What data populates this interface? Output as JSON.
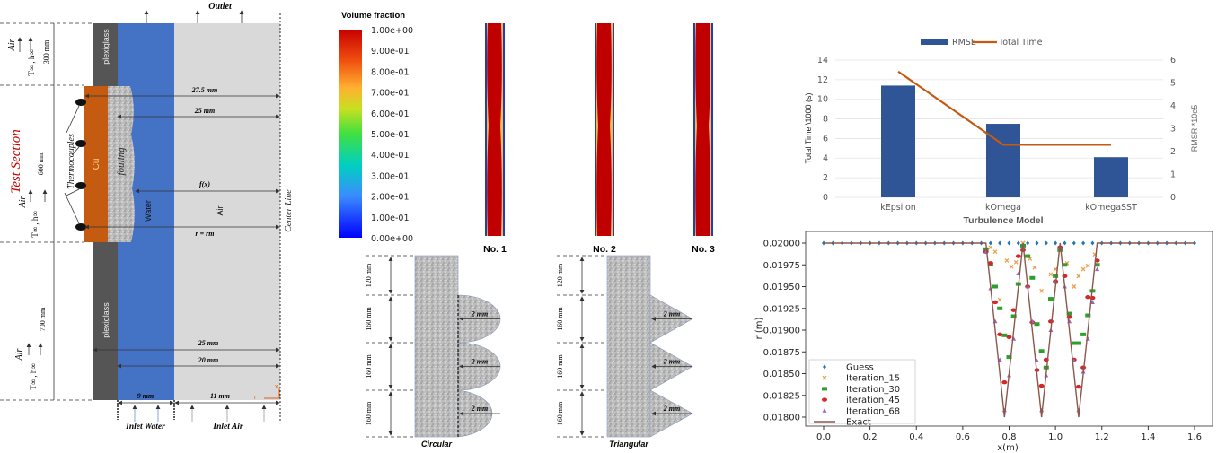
{
  "setup_diagram": {
    "outlet": "Outlet",
    "test_section": "Test Section",
    "air": "Air",
    "ambient": "T∞ , h∞",
    "len_top": "300 mm",
    "len_mid": "600 mm",
    "len_bottom": "700 mm",
    "plexiglass": "plexiglass",
    "thermocouples": "Thermocouples",
    "cu": "Cu",
    "fouling": "fouling",
    "water": "Water",
    "air_core": "Air",
    "center_line": "Center Line",
    "dim_275": "27.5 mm",
    "dim_25a": "25 mm",
    "dim_fx": "f(x)",
    "dim_rm": "r = rm",
    "dim_25b": "25 mm",
    "dim_20": "20 mm",
    "dim_9": "9 mm",
    "dim_11": "11 mm",
    "axis_x": "x",
    "axis_r": "r",
    "inlet_water": "Inlet Water",
    "inlet_air": "Inlet Air",
    "colors": {
      "plexiglass": "#555555",
      "cu": "#c55a11",
      "water": "#4472c4",
      "air": "#d9d9d9",
      "fouling": "#bdbdbd",
      "test_section": "#c00000"
    }
  },
  "volume_fraction": {
    "title": "Volume fraction",
    "ticks": [
      "1.00e+00",
      "9.00e-01",
      "8.00e-01",
      "7.00e-01",
      "6.00e-01",
      "5.00e-01",
      "4.00e-01",
      "3.00e-01",
      "2.00e-01",
      "1.00e-01",
      "0.00e+00"
    ],
    "cases": [
      "No. 1",
      "No. 2",
      "No. 3"
    ]
  },
  "fouling_shapes": {
    "circular": {
      "label": "Circular",
      "heights": [
        "120 mm",
        "160 mm",
        "160 mm",
        "160 mm"
      ],
      "radius": [
        "2 mm",
        "2 mm",
        "2 mm"
      ]
    },
    "triangular": {
      "label": "Triangular",
      "heights": [
        "120 mm",
        "160 mm",
        "160 mm",
        "160 mm"
      ],
      "radius": [
        "2 mm",
        "2 mm",
        "2 mm"
      ]
    }
  },
  "chart_data": [
    {
      "type": "bar",
      "title": "",
      "categories": [
        "kEpsilon",
        "kOmega",
        "kOmegaSST"
      ],
      "xlabel": "Turbulence Model",
      "ylabel": "Total Time \\1000 (s)",
      "ylabel_right": "RMSR *10e5",
      "ylim": [
        0,
        14
      ],
      "ylim_right": [
        0,
        6
      ],
      "yticks": [
        "0",
        "2",
        "4",
        "6",
        "8",
        "10",
        "12",
        "14"
      ],
      "yticks_right": [
        "0",
        "1",
        "2",
        "3",
        "4",
        "5",
        "6"
      ],
      "grid": true,
      "legend": "top",
      "series": [
        {
          "name": "RMSE",
          "kind": "bar",
          "axis": "left",
          "color": "#2f5597",
          "values": [
            11.4,
            7.5,
            4.1
          ]
        },
        {
          "name": "Total Time",
          "kind": "line",
          "axis": "right",
          "color": "#c55a11",
          "values": [
            5.5,
            2.3,
            2.3
          ]
        }
      ]
    },
    {
      "type": "scatter",
      "title": "",
      "xlabel": "x(m)",
      "ylabel": "r (m)",
      "xlim": [
        0,
        1.6
      ],
      "ylim": [
        0.018,
        0.02
      ],
      "xticks": [
        "0.0",
        "0.2",
        "0.4",
        "0.6",
        "0.8",
        "1.0",
        "1.2",
        "1.4",
        "1.6"
      ],
      "yticks": [
        "0.01800",
        "0.01825",
        "0.01850",
        "0.01875",
        "0.01900",
        "0.01925",
        "0.01950",
        "0.01975",
        "0.02000"
      ],
      "legend": "bottom-left",
      "series": [
        {
          "name": "Guess",
          "marker": "diamond",
          "color": "#1f77b4",
          "x": [
            0,
            0.04,
            0.08,
            0.12,
            0.16,
            0.2,
            0.24,
            0.28,
            0.32,
            0.36,
            0.4,
            0.44,
            0.48,
            0.52,
            0.56,
            0.6,
            0.64,
            0.68,
            0.72,
            0.76,
            0.8,
            0.84,
            0.88,
            0.92,
            0.96,
            1.0,
            1.04,
            1.08,
            1.12,
            1.16,
            1.2,
            1.24,
            1.28,
            1.32,
            1.36,
            1.4,
            1.44,
            1.48,
            1.52,
            1.56,
            1.6
          ],
          "y": [
            0.02,
            0.02,
            0.02,
            0.02,
            0.02,
            0.02,
            0.02,
            0.02,
            0.02,
            0.02,
            0.02,
            0.02,
            0.02,
            0.02,
            0.02,
            0.02,
            0.02,
            0.02,
            0.02,
            0.02,
            0.02,
            0.02,
            0.02,
            0.02,
            0.02,
            0.02,
            0.02,
            0.02,
            0.02,
            0.02,
            0.02,
            0.02,
            0.02,
            0.02,
            0.02,
            0.02,
            0.02,
            0.02,
            0.02,
            0.02,
            0.02
          ]
        },
        {
          "name": "Iteration_15",
          "marker": "x",
          "color": "#e8a050",
          "x": [
            0.72,
            0.74,
            0.76,
            0.79,
            0.81,
            0.83,
            0.86,
            0.89,
            0.91,
            0.94,
            0.98,
            1.0,
            1.05,
            1.08,
            1.1,
            1.12,
            1.14,
            1.17
          ],
          "y": [
            0.01995,
            0.0199,
            0.01935,
            0.0198,
            0.01973,
            0.01978,
            0.02,
            0.01982,
            0.01972,
            0.01945,
            0.01964,
            0.0197,
            0.01977,
            0.0195,
            0.01962,
            0.0197,
            0.01974,
            0.01987
          ]
        },
        {
          "name": "Iteration_30",
          "marker": "square",
          "color": "#2ca02c",
          "x": [
            0.7,
            0.72,
            0.74,
            0.76,
            0.78,
            0.8,
            0.82,
            0.84,
            0.86,
            0.88,
            0.9,
            0.92,
            0.94,
            0.96,
            0.98,
            1.0,
            1.02,
            1.04,
            1.06,
            1.08,
            1.1,
            1.12,
            1.14,
            1.16,
            1.18
          ],
          "y": [
            0.01993,
            0.01976,
            0.0195,
            0.01925,
            0.01894,
            0.01869,
            0.01916,
            0.01953,
            0.01997,
            0.01985,
            0.0196,
            0.01907,
            0.01876,
            0.01857,
            0.01936,
            0.01962,
            0.01992,
            0.01975,
            0.01919,
            0.01885,
            0.01885,
            0.01895,
            0.01917,
            0.01945,
            0.01975
          ]
        },
        {
          "name": "iteration_45",
          "marker": "circle",
          "color": "#d62728",
          "x": [
            0.7,
            0.72,
            0.74,
            0.76,
            0.78,
            0.8,
            0.82,
            0.84,
            0.86,
            0.88,
            0.9,
            0.92,
            0.94,
            0.96,
            0.98,
            1.0,
            1.02,
            1.04,
            1.06,
            1.08,
            1.1,
            1.12,
            1.14,
            1.16,
            1.18
          ],
          "y": [
            0.0199,
            0.01977,
            0.01932,
            0.01895,
            0.0184,
            0.01892,
            0.01923,
            0.01985,
            0.01992,
            0.0195,
            0.01909,
            0.01854,
            0.01836,
            0.01866,
            0.0191,
            0.01956,
            0.01995,
            0.01962,
            0.01915,
            0.01866,
            0.01835,
            0.01857,
            0.01938,
            0.01937,
            0.0198
          ]
        },
        {
          "name": "Iteration_68",
          "marker": "triangle",
          "color": "#9467bd",
          "x": [
            0.7,
            0.72,
            0.74,
            0.76,
            0.78,
            0.8,
            0.82,
            0.84,
            0.86,
            0.88,
            0.9,
            0.92,
            0.94,
            0.96,
            0.98,
            1.0,
            1.02,
            1.04,
            1.06,
            1.08,
            1.1,
            1.12,
            1.14,
            1.16,
            1.18
          ],
          "y": [
            0.0199,
            0.01948,
            0.0191,
            0.01866,
            0.01808,
            0.01848,
            0.0189,
            0.01965,
            0.01995,
            0.0195,
            0.0191,
            0.01865,
            0.01808,
            0.01848,
            0.019,
            0.01955,
            0.01995,
            0.0195,
            0.0191,
            0.01865,
            0.01808,
            0.01852,
            0.0189,
            0.01932,
            0.0197
          ]
        },
        {
          "name": "Exact",
          "marker": "line",
          "color": "#8c564b",
          "x": [
            0,
            0.7,
            0.78,
            0.86,
            0.94,
            1.02,
            1.1,
            1.18,
            1.6
          ],
          "y": [
            0.02,
            0.02,
            0.018,
            0.02,
            0.018,
            0.02,
            0.018,
            0.02,
            0.02
          ]
        }
      ]
    }
  ]
}
